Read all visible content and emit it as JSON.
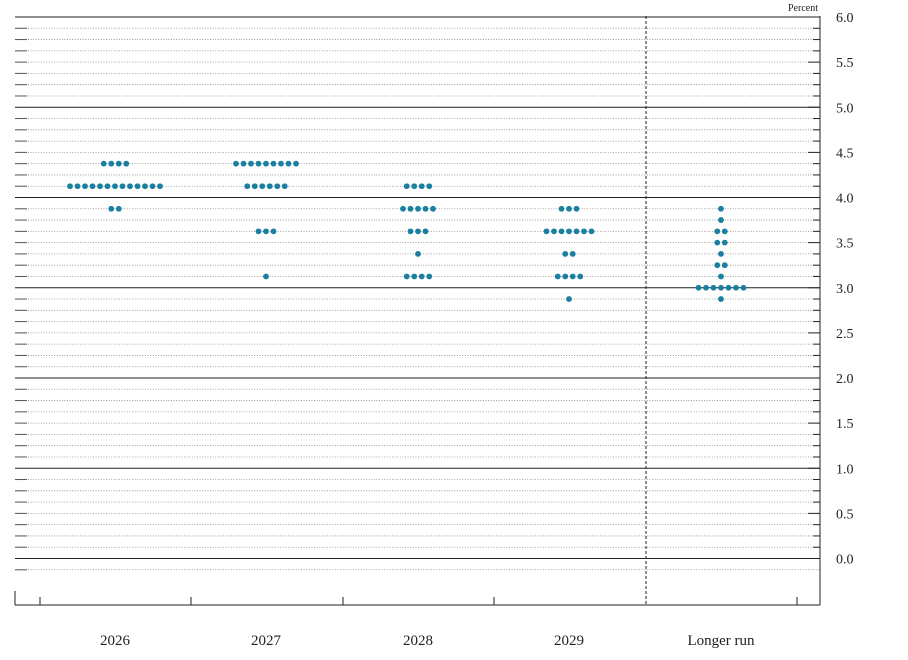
{
  "chart_data": {
    "type": "scatter",
    "unit": "Percent",
    "categories": [
      "2026",
      "2027",
      "2028",
      "2029",
      "Longer run"
    ],
    "ylim": [
      -0.25,
      6.0
    ],
    "y_ticks": [
      "6.0",
      "5.5",
      "5.0",
      "4.5",
      "4.0",
      "3.5",
      "3.0",
      "2.5",
      "2.0",
      "1.5",
      "1.0",
      "0.5",
      "0.0"
    ],
    "grid": "solid major gridlines every 1.0, dotted minor gridlines every 0.125",
    "separator_before": "Longer run",
    "dot_color": "#1a7fa0",
    "points": {
      "2026": [
        {
          "y": 4.375,
          "count": 4
        },
        {
          "y": 4.125,
          "count": 13
        },
        {
          "y": 3.875,
          "count": 2
        }
      ],
      "2027": [
        {
          "y": 4.375,
          "count": 9
        },
        {
          "y": 4.125,
          "count": 6
        },
        {
          "y": 3.625,
          "count": 3
        },
        {
          "y": 3.125,
          "count": 1
        }
      ],
      "2028": [
        {
          "y": 4.125,
          "count": 4
        },
        {
          "y": 3.875,
          "count": 5
        },
        {
          "y": 3.625,
          "count": 3
        },
        {
          "y": 3.375,
          "count": 1
        },
        {
          "y": 3.125,
          "count": 4
        }
      ],
      "2029": [
        {
          "y": 3.875,
          "count": 3
        },
        {
          "y": 3.625,
          "count": 7
        },
        {
          "y": 3.375,
          "count": 2
        },
        {
          "y": 3.125,
          "count": 4
        },
        {
          "y": 2.875,
          "count": 1
        }
      ],
      "Longer run": [
        {
          "y": 3.875,
          "count": 1
        },
        {
          "y": 3.75,
          "count": 1
        },
        {
          "y": 3.625,
          "count": 2
        },
        {
          "y": 3.5,
          "count": 2
        },
        {
          "y": 3.375,
          "count": 1
        },
        {
          "y": 3.25,
          "count": 2
        },
        {
          "y": 3.125,
          "count": 1
        },
        {
          "y": 3.0,
          "count": 7
        },
        {
          "y": 2.875,
          "count": 1
        }
      ]
    }
  }
}
